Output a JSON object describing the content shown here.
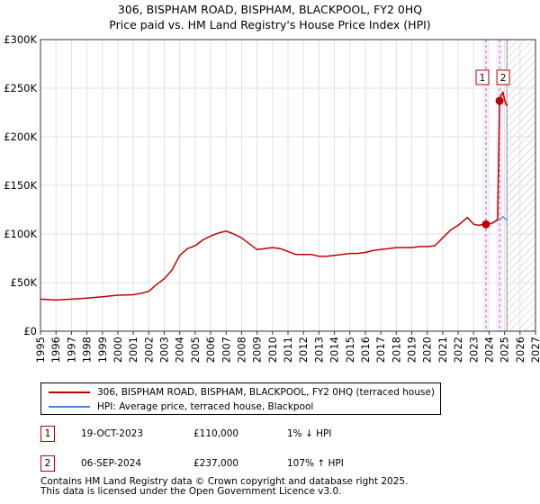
{
  "chart_data": {
    "type": "line",
    "title": "306, BISPHAM ROAD, BISPHAM, BLACKPOOL, FY2 0HQ",
    "subtitle": "Price paid vs. HM Land Registry's House Price Index (HPI)",
    "xlabel": "",
    "ylabel": "",
    "xlim": [
      1995,
      2027
    ],
    "ylim": [
      0,
      300000
    ],
    "y_ticks": [
      0,
      50000,
      100000,
      150000,
      200000,
      250000,
      300000
    ],
    "y_tick_labels": [
      "£0",
      "£50K",
      "£100K",
      "£150K",
      "£200K",
      "£250K",
      "£300K"
    ],
    "x_ticks": [
      1995,
      1996,
      1997,
      1998,
      1999,
      2000,
      2001,
      2002,
      2003,
      2004,
      2005,
      2006,
      2007,
      2008,
      2009,
      2010,
      2011,
      2012,
      2013,
      2014,
      2015,
      2016,
      2017,
      2018,
      2019,
      2020,
      2021,
      2022,
      2023,
      2024,
      2025,
      2026,
      2027
    ],
    "x_tick_labels": [
      "1995",
      "1996",
      "1997",
      "1998",
      "1999",
      "2000",
      "2001",
      "2002",
      "2003",
      "2004",
      "2005",
      "2006",
      "2007",
      "2008",
      "2009",
      "2010",
      "2011",
      "2012",
      "2013",
      "2014",
      "2015",
      "2016",
      "2017",
      "2018",
      "2019",
      "2020",
      "2021",
      "2022",
      "2023",
      "2024",
      "2025",
      "2026",
      "2027"
    ],
    "grid": true,
    "forecast_start": 2025.15,
    "series": [
      {
        "name": "306, BISPHAM ROAD, BISPHAM, BLACKPOOL, FY2 0HQ (terraced house)",
        "color": "#c00000",
        "x": [
          1995.0,
          1996.0,
          1997.0,
          1998.0,
          1999.0,
          2000.0,
          2001.0,
          2001.5,
          2002.0,
          2002.5,
          2003.0,
          2003.5,
          2004.0,
          2004.5,
          2005.0,
          2005.5,
          2006.0,
          2006.5,
          2007.0,
          2007.5,
          2008.0,
          2008.5,
          2009.0,
          2009.5,
          2010.0,
          2010.5,
          2011.0,
          2011.5,
          2012.0,
          2012.5,
          2013.0,
          2013.5,
          2014.0,
          2014.5,
          2015.0,
          2015.5,
          2016.0,
          2016.5,
          2017.0,
          2017.5,
          2018.0,
          2018.5,
          2019.0,
          2019.5,
          2020.0,
          2020.5,
          2021.0,
          2021.5,
          2022.0,
          2022.3,
          2022.6,
          2023.0,
          2023.3,
          2023.8,
          2024.0,
          2024.3,
          2024.55,
          2024.68,
          2024.8,
          2024.9,
          2025.0,
          2025.1,
          2025.2
        ],
        "y": [
          33000,
          32000,
          33000,
          34000,
          35500,
          37000,
          37500,
          39000,
          41000,
          48000,
          54000,
          63000,
          78000,
          85000,
          88000,
          94000,
          98000,
          101000,
          103000,
          100000,
          96000,
          90000,
          84000,
          85000,
          86000,
          85000,
          82000,
          79000,
          79000,
          79000,
          77000,
          77000,
          78000,
          79000,
          80000,
          80000,
          81000,
          83000,
          84000,
          85000,
          86000,
          86000,
          86000,
          87000,
          87000,
          88000,
          96000,
          104000,
          109000,
          113000,
          117000,
          110000,
          109000,
          110000,
          110000,
          112000,
          115000,
          237000,
          243000,
          246000,
          238000,
          233000,
          232000
        ]
      },
      {
        "name": "HPI: Average price, terraced house, Blackpool",
        "color": "#4a86d8",
        "x": [
          2023.8,
          2024.0,
          2024.2,
          2024.4,
          2024.55,
          2024.7,
          2024.9,
          2025.0,
          2025.1,
          2025.2
        ],
        "y": [
          111000,
          110000,
          111000,
          113000,
          114000,
          115000,
          118000,
          116000,
          115000,
          114000
        ]
      }
    ],
    "annotations": [
      {
        "label": "1",
        "x": 2023.8
      },
      {
        "label": "2",
        "x": 2024.68
      }
    ],
    "sale_points": [
      {
        "x": 2023.8,
        "y": 110000
      },
      {
        "x": 2024.68,
        "y": 237000
      }
    ]
  },
  "legend": {
    "entries": [
      {
        "label": "306, BISPHAM ROAD, BISPHAM, BLACKPOOL, FY2 0HQ (terraced house)",
        "color": "#c00000"
      },
      {
        "label": "HPI: Average price, terraced house, Blackpool",
        "color": "#4a86d8"
      }
    ]
  },
  "transactions": [
    {
      "num": "1",
      "date": "19-OCT-2023",
      "price": "£110,000",
      "hpi": "1% ↓ HPI"
    },
    {
      "num": "2",
      "date": "06-SEP-2024",
      "price": "£237,000",
      "hpi": "107% ↑ HPI"
    }
  ],
  "footer": {
    "line1": "Contains HM Land Registry data © Crown copyright and database right 2025.",
    "line2": "This data is licensed under the Open Government Licence v3.0."
  }
}
